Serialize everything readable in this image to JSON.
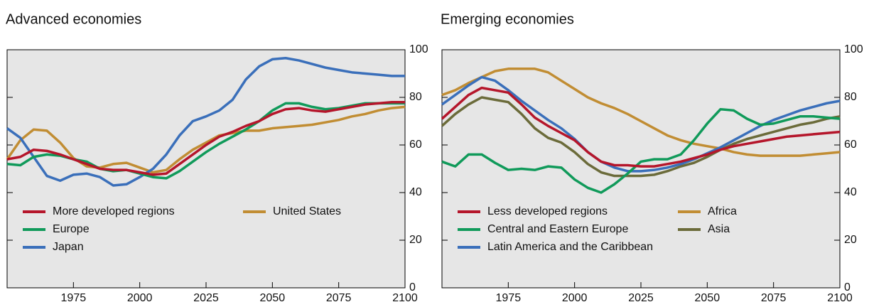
{
  "chart_data": [
    {
      "type": "line",
      "title": "Advanced economies",
      "x": [
        1950,
        1955,
        1960,
        1965,
        1970,
        1975,
        1980,
        1985,
        1990,
        1995,
        2000,
        2005,
        2010,
        2015,
        2020,
        2025,
        2030,
        2035,
        2040,
        2045,
        2050,
        2055,
        2060,
        2065,
        2070,
        2075,
        2080,
        2085,
        2090,
        2095,
        2100
      ],
      "xlim": [
        1950,
        2100
      ],
      "xticks": [
        1975,
        2000,
        2025,
        2050,
        2075,
        2100
      ],
      "ylim": [
        0,
        100
      ],
      "yticks": [
        0,
        20,
        40,
        60,
        80,
        100
      ],
      "series": [
        {
          "name": "More developed regions",
          "color": "#b5162b",
          "values": [
            54,
            55,
            58,
            57.5,
            56,
            54,
            52,
            50,
            49.5,
            49.5,
            48.5,
            47.5,
            48,
            52,
            56,
            60,
            63.5,
            65.5,
            68,
            70,
            73,
            75,
            75.5,
            74.5,
            74,
            75,
            76,
            77,
            77.5,
            78,
            78
          ]
        },
        {
          "name": "Europe",
          "color": "#109a5a",
          "values": [
            52,
            51.5,
            55,
            56,
            55.5,
            54,
            53,
            50,
            49,
            49.5,
            48,
            46.5,
            46,
            49,
            53,
            57,
            60.5,
            63.5,
            66.5,
            70,
            74.5,
            77.5,
            77.5,
            76,
            75,
            75.5,
            76.5,
            77.5,
            77.5,
            77.5,
            77.5
          ]
        },
        {
          "name": "Japan",
          "color": "#3a6fba",
          "values": [
            67,
            63,
            55,
            47,
            45,
            47.5,
            48,
            46.5,
            43,
            43.5,
            46.5,
            50,
            56,
            64,
            70,
            72,
            74.5,
            79,
            87.5,
            93,
            96,
            96.5,
            95.5,
            94,
            92.5,
            91.5,
            90.5,
            90,
            89.5,
            89,
            89
          ]
        },
        {
          "name": "United States",
          "color": "#c18d33",
          "values": [
            54,
            62,
            66.5,
            66,
            61,
            54.5,
            51,
            50.5,
            52,
            52.5,
            50.5,
            48.5,
            49.5,
            54,
            58,
            61,
            64,
            65,
            66,
            66,
            67,
            67.5,
            68,
            68.5,
            69.5,
            70.5,
            72,
            73,
            74.5,
            75.5,
            76
          ]
        }
      ]
    },
    {
      "type": "line",
      "title": "Emerging economies",
      "x": [
        1950,
        1955,
        1960,
        1965,
        1970,
        1975,
        1980,
        1985,
        1990,
        1995,
        2000,
        2005,
        2010,
        2015,
        2020,
        2025,
        2030,
        2035,
        2040,
        2045,
        2050,
        2055,
        2060,
        2065,
        2070,
        2075,
        2080,
        2085,
        2090,
        2095,
        2100
      ],
      "xlim": [
        1950,
        2100
      ],
      "xticks": [
        1975,
        2000,
        2025,
        2050,
        2075,
        2100
      ],
      "ylim": [
        0,
        100
      ],
      "yticks": [
        0,
        20,
        40,
        60,
        80,
        100
      ],
      "series": [
        {
          "name": "Less developed regions",
          "color": "#b5162b",
          "values": [
            71,
            76,
            81,
            84,
            83,
            82,
            77,
            71.5,
            68,
            65,
            62,
            57,
            53,
            51.5,
            51.5,
            51,
            51,
            52,
            53,
            54.5,
            56,
            58,
            59.5,
            60.5,
            61.5,
            62.5,
            63.5,
            64,
            64.5,
            65,
            65.5
          ]
        },
        {
          "name": "Central and Eastern Europe",
          "color": "#109a5a",
          "values": [
            53,
            51,
            56,
            56,
            52.5,
            49.5,
            50,
            49.5,
            51,
            50.5,
            45.5,
            42,
            40,
            43.5,
            48,
            53,
            54,
            54,
            56,
            62,
            69,
            75,
            74.5,
            71,
            68.5,
            69,
            70.5,
            72,
            72,
            71.5,
            71
          ]
        },
        {
          "name": "Latin America and the Caribbean",
          "color": "#3a6fba",
          "values": [
            77,
            81,
            85,
            88.5,
            87,
            83,
            78.5,
            74.5,
            70.5,
            67,
            62.5,
            57,
            53,
            50.5,
            49,
            49,
            49.5,
            50.5,
            52,
            54,
            56.5,
            59,
            62,
            65,
            68,
            70.5,
            72.5,
            74.5,
            76,
            77.5,
            78.5
          ]
        },
        {
          "name": "Africa",
          "color": "#c18d33",
          "values": [
            81,
            83,
            86,
            88.5,
            91,
            92,
            92,
            92,
            90.5,
            87,
            83.5,
            80,
            77.5,
            75.5,
            73,
            70,
            67,
            64,
            62,
            60.5,
            59.5,
            58.5,
            57,
            56,
            55.5,
            55.5,
            55.5,
            55.5,
            56,
            56.5,
            57
          ]
        },
        {
          "name": "Asia",
          "color": "#6b6b3a",
          "values": [
            68,
            73,
            77,
            80,
            79,
            78,
            73,
            67,
            63,
            61,
            57,
            52,
            48.5,
            47,
            47,
            47,
            47.5,
            49,
            51,
            52.5,
            55,
            58,
            60.5,
            62.5,
            64,
            65.5,
            67,
            68.5,
            69.5,
            71,
            72
          ]
        }
      ]
    }
  ]
}
